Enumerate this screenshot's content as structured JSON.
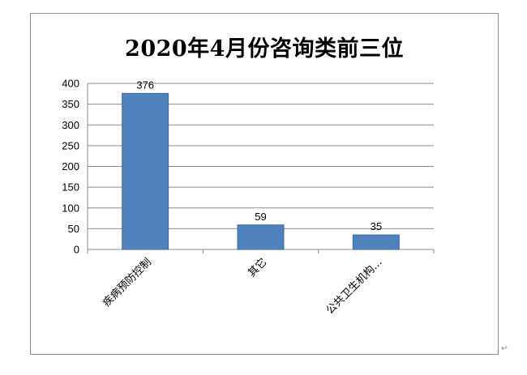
{
  "chart_data": {
    "type": "bar",
    "title": "2020年4月份咨询类前三位",
    "categories": [
      "疾病预防控制",
      "其它",
      "公共卫生机构…"
    ],
    "values": [
      376,
      59,
      35
    ],
    "data_labels": [
      "376",
      "59",
      "35"
    ],
    "ylim": [
      0,
      400
    ],
    "yticks": [
      0,
      50,
      100,
      150,
      200,
      250,
      300,
      350,
      400
    ],
    "xlabel": "",
    "ylabel": "",
    "grid": true,
    "legend": "none",
    "bar_color": "#4f81bd",
    "bar_edge_color": "#3a6a9e",
    "grid_color": "#8a8a8a"
  }
}
